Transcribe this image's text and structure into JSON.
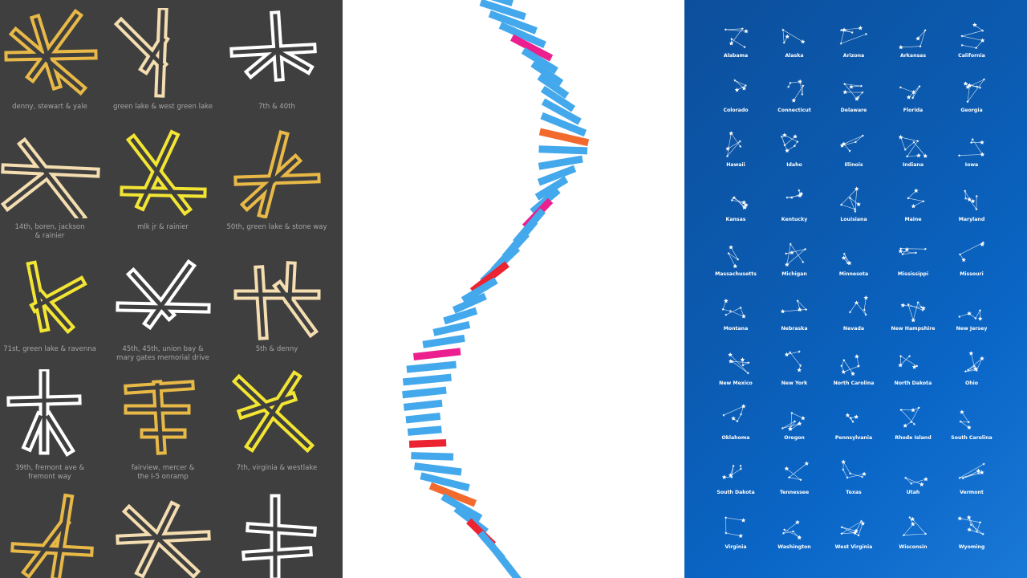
{
  "intersections": {
    "colors": {
      "gold": "#e8b947",
      "yellow": "#f2e533",
      "cream": "#f4ddb0",
      "white": "#ffffff"
    },
    "items": [
      {
        "label": "denny, stewart & yale",
        "color": "gold"
      },
      {
        "label": "green lake & west green lake",
        "color": "cream"
      },
      {
        "label": "7th & 40th",
        "color": "white"
      },
      {
        "label": "14th, boren, jackson\n& rainier",
        "color": "cream"
      },
      {
        "label": "mlk jr & rainier",
        "color": "yellow"
      },
      {
        "label": "50th, green lake & stone way",
        "color": "gold"
      },
      {
        "label": "71st, green lake & ravenna",
        "color": "yellow"
      },
      {
        "label": "45th, 45th, union bay &\nmary gates memorial drive",
        "color": "white"
      },
      {
        "label": "5th & denny",
        "color": "cream"
      },
      {
        "label": "39th, fremont ave &\nfremont way",
        "color": "white"
      },
      {
        "label": "fairview, mercer &\nthe I-5 onramp",
        "color": "gold"
      },
      {
        "label": "7th, virginia & westlake",
        "color": "yellow"
      },
      {
        "label": "",
        "color": "gold"
      },
      {
        "label": "",
        "color": "cream"
      },
      {
        "label": "",
        "color": "white"
      }
    ]
  },
  "stripes": {
    "colors": {
      "blue": "#44a8ec",
      "pink": "#ec1f8e",
      "orange": "#f26a2e",
      "red": "#ec2330"
    },
    "accents": {
      "4": "pink",
      "11": "orange",
      "17": "pink",
      "22": "red",
      "28": "pink",
      "35": "red",
      "39": "orange",
      "42": "red"
    }
  },
  "constellations": {
    "items": [
      "Alabama",
      "Alaska",
      "Arizona",
      "Arkansas",
      "California",
      "Colorado",
      "Connecticut",
      "Delaware",
      "Florida",
      "Georgia",
      "Hawaii",
      "Idaho",
      "Illinois",
      "Indiana",
      "Iowa",
      "Kansas",
      "Kentucky",
      "Louisiana",
      "Maine",
      "Maryland",
      "Massachusetts",
      "Michigan",
      "Minnesota",
      "Mississippi",
      "Missouri",
      "Montana",
      "Nebraska",
      "Nevada",
      "New Hampshire",
      "New Jersey",
      "New Mexico",
      "New York",
      "North Carolina",
      "North Dakota",
      "Ohio",
      "Oklahoma",
      "Oregon",
      "Pennsylvania",
      "Rhode Island",
      "South Carolina",
      "South Dakota",
      "Tennessee",
      "Texas",
      "Utah",
      "Vermont",
      "Virginia",
      "Washington",
      "West Virginia",
      "Wisconsin",
      "Wyoming"
    ]
  }
}
